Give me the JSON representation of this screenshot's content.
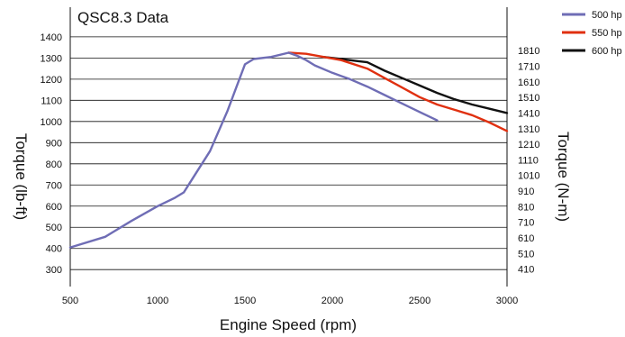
{
  "chart_data": {
    "type": "line",
    "title": "QSC8.3 Data",
    "xlabel": "Engine Speed (rpm)",
    "ylabel": "Torque (lb-ft)",
    "y2label": "Torque (N-m)",
    "xlim": [
      500,
      3000
    ],
    "ylim": [
      220,
      1540
    ],
    "x_ticks": [
      500,
      1000,
      1500,
      2000,
      2500,
      3000
    ],
    "y_ticks": [
      300,
      400,
      500,
      600,
      700,
      800,
      900,
      1000,
      1100,
      1200,
      1300,
      1400
    ],
    "y2_ticks": [
      {
        "label": "410",
        "at": 302
      },
      {
        "label": "510",
        "at": 376
      },
      {
        "label": "610",
        "at": 450
      },
      {
        "label": "710",
        "at": 524
      },
      {
        "label": "810",
        "at": 597
      },
      {
        "label": "910",
        "at": 671
      },
      {
        "label": "1010",
        "at": 745
      },
      {
        "label": "1110",
        "at": 819
      },
      {
        "label": "1210",
        "at": 892
      },
      {
        "label": "1310",
        "at": 966
      },
      {
        "label": "1410",
        "at": 1040
      },
      {
        "label": "1510",
        "at": 1114
      },
      {
        "label": "1610",
        "at": 1187
      },
      {
        "label": "1710",
        "at": 1261
      },
      {
        "label": "1810",
        "at": 1335
      }
    ],
    "grid": "horizontal",
    "legend_position": "top-right",
    "series": [
      {
        "name": "500 hp",
        "color": "#6f6db5",
        "points": [
          [
            500,
            405
          ],
          [
            700,
            455
          ],
          [
            850,
            530
          ],
          [
            1000,
            600
          ],
          [
            1100,
            640
          ],
          [
            1150,
            665
          ],
          [
            1200,
            730
          ],
          [
            1300,
            860
          ],
          [
            1400,
            1050
          ],
          [
            1450,
            1160
          ],
          [
            1500,
            1270
          ],
          [
            1550,
            1295
          ],
          [
            1650,
            1305
          ],
          [
            1750,
            1325
          ],
          [
            1800,
            1310
          ],
          [
            1850,
            1290
          ],
          [
            1900,
            1265
          ],
          [
            2000,
            1230
          ],
          [
            2100,
            1200
          ],
          [
            2200,
            1165
          ],
          [
            2300,
            1125
          ],
          [
            2400,
            1085
          ],
          [
            2500,
            1045
          ],
          [
            2600,
            1005
          ]
        ]
      },
      {
        "name": "550 hp",
        "color": "#e03010",
        "points": [
          [
            1750,
            1325
          ],
          [
            1850,
            1320
          ],
          [
            1950,
            1305
          ],
          [
            2050,
            1290
          ],
          [
            2200,
            1250
          ],
          [
            2300,
            1205
          ],
          [
            2400,
            1160
          ],
          [
            2500,
            1115
          ],
          [
            2600,
            1080
          ],
          [
            2700,
            1055
          ],
          [
            2800,
            1030
          ],
          [
            2900,
            995
          ],
          [
            3000,
            955
          ]
        ]
      },
      {
        "name": "600 hp",
        "color": "#111111",
        "points": [
          [
            1950,
            1305
          ],
          [
            2050,
            1295
          ],
          [
            2150,
            1285
          ],
          [
            2200,
            1280
          ],
          [
            2300,
            1240
          ],
          [
            2400,
            1205
          ],
          [
            2500,
            1170
          ],
          [
            2600,
            1135
          ],
          [
            2700,
            1105
          ],
          [
            2800,
            1080
          ],
          [
            2900,
            1060
          ],
          [
            3000,
            1040
          ]
        ]
      }
    ]
  }
}
